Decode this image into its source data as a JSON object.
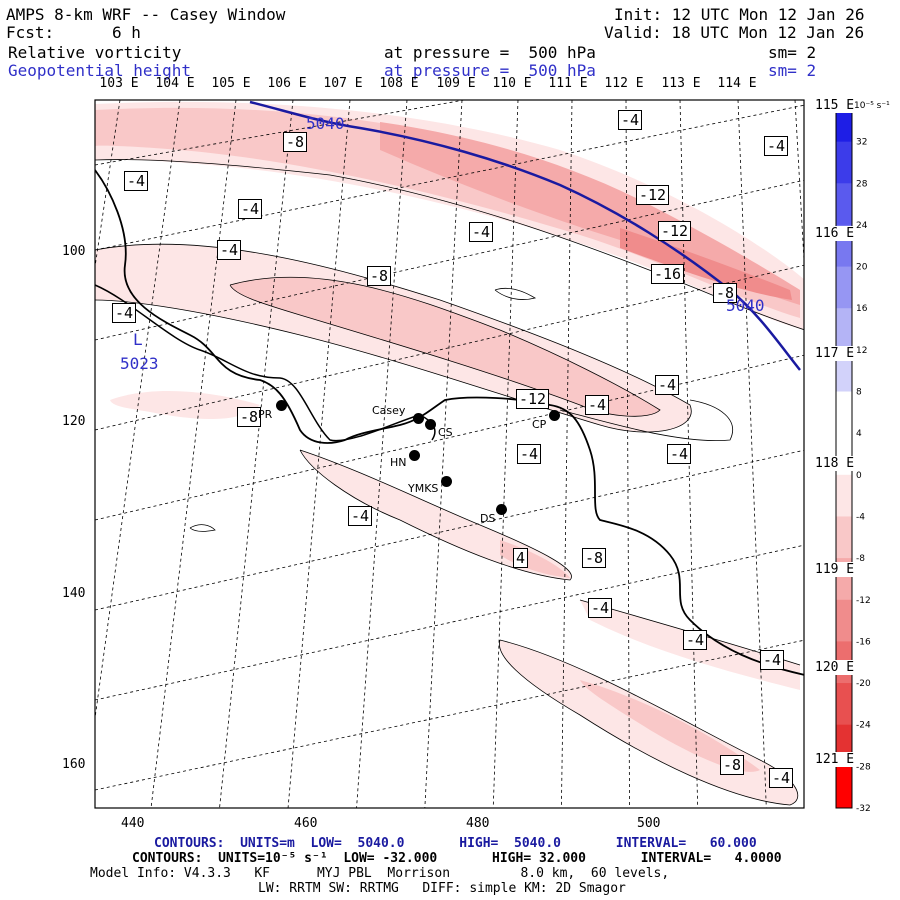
{
  "header": {
    "title": "AMPS 8-km WRF -- Casey Window",
    "init": "Init: 12 UTC Mon 12 Jan 26",
    "fcst": "Fcst:      6 h",
    "valid": "Valid: 18 UTC Mon 12 Jan 26",
    "field1": "Relative vorticity",
    "field1_level": "at pressure =  500 hPa",
    "field1_sm": "sm= 2",
    "field2": "Geopotential height",
    "field2_level": "at pressure =  500 hPa",
    "field2_sm": "sm= 2"
  },
  "longitude_labels": [
    "103 E",
    "104 E",
    "105 E",
    "106 E",
    "107 E",
    "108 E",
    "109 E",
    "110 E",
    "111 E",
    "112 E",
    "113 E",
    "114 E"
  ],
  "latitude_labels": [
    "115 E",
    "116 E",
    "117 E",
    "118 E",
    "119 E",
    "120 E",
    "121 E"
  ],
  "y_ticks": [
    "100",
    "120",
    "140",
    "160"
  ],
  "x_ticks": [
    "440",
    "460",
    "480",
    "500"
  ],
  "colorbar": {
    "unit": "10⁻⁵ s⁻¹",
    "labels": [
      "32",
      "28",
      "24",
      "20",
      "16",
      "12",
      "8",
      "4",
      "0",
      "-4",
      "-8",
      "-12",
      "-16",
      "-20",
      "-24",
      "-28",
      "-32"
    ],
    "colors": [
      "#1e1ee6",
      "#3c3cea",
      "#5a5aee",
      "#7878f0",
      "#9696f3",
      "#b4b4f6",
      "#d2d2fa",
      "#ffffff",
      "#ffffff",
      "#fde6e6",
      "#f9c8c8",
      "#f5aaaa",
      "#f08c8c",
      "#ec6e6e",
      "#e85050",
      "#e43232",
      "#ff0000"
    ]
  },
  "contour_labels": {
    "height": [
      "5040",
      "5040"
    ],
    "low_center_letter": "L",
    "low_center_value": "5023",
    "vorticity": [
      "-4",
      "-8",
      "-4",
      "-4",
      "-4",
      "-8",
      "-4",
      "-12",
      "-12",
      "-16",
      "-8",
      "-4",
      "-4",
      "-4",
      "-8",
      "-12",
      "-4",
      "-4",
      "-4",
      "-4",
      "-8",
      "4",
      "-4",
      "-4",
      "-4",
      "-8",
      "-4"
    ]
  },
  "stations": [
    "Casey",
    "CS",
    "CP",
    "HN",
    "YMKS",
    "DS",
    "PR"
  ],
  "footer": {
    "height_contours": "CONTOURS:  UNITS=m  LOW=  5040.0       HIGH=  5040.0       INTERVAL=   60.000",
    "vort_contours": "CONTOURS:  UNITS=10⁻⁵ s⁻¹  LOW= -32.000       HIGH= 32.000       INTERVAL=   4.0000",
    "model_info": "Model Info: V4.3.3   KF      MYJ PBL  Morrison         8.0 km,  60 levels,",
    "physics": "LW: RRTM SW: RRTMG   DIFF: simple KM: 2D Smagor"
  },
  "colors": {
    "height_contour": "#1a1aa0",
    "label_blue": "#3030c8",
    "vort_light": "#fde6e6",
    "vort_mid": "#f9c8c8",
    "vort_strong": "#f5aaaa",
    "vort_max": "#f08c8c"
  }
}
